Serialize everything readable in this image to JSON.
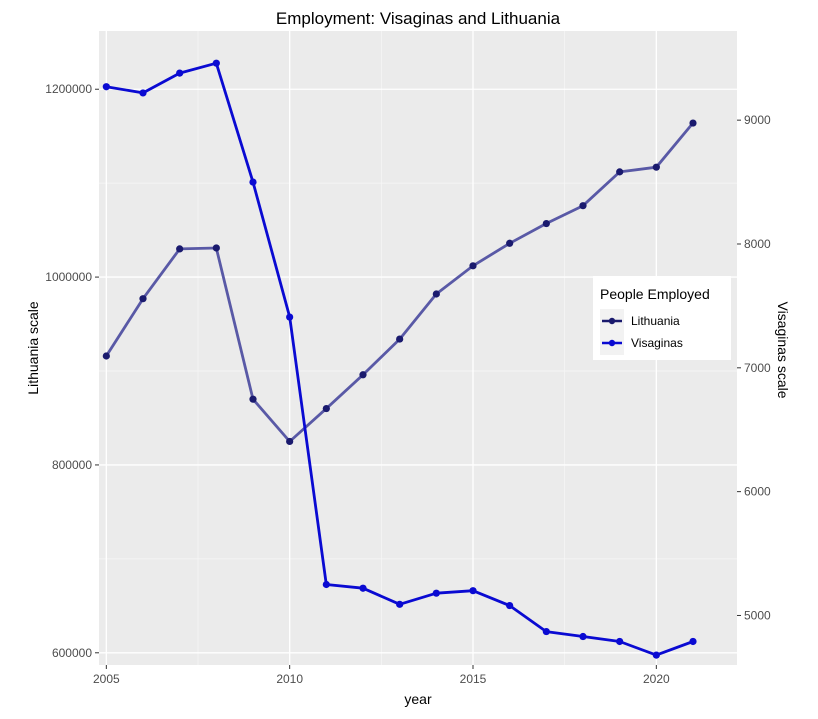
{
  "chart_data": {
    "type": "line",
    "title": "Employment: Visaginas and Lithuania",
    "xlabel": "year",
    "ylabel_left": "Lithuania scale",
    "ylabel_right": "Visaginas scale",
    "x": [
      2005,
      2006,
      2007,
      2008,
      2009,
      2010,
      2011,
      2012,
      2013,
      2014,
      2015,
      2016,
      2017,
      2018,
      2019,
      2020,
      2021
    ],
    "xlim": [
      2004.8,
      2022.2
    ],
    "ylim_left": [
      587000,
      1262000
    ],
    "ylim_right": [
      4600,
      9720
    ],
    "x_ticks": [
      2005,
      2010,
      2015,
      2020
    ],
    "y_ticks_left": [
      600000,
      800000,
      1000000,
      1200000
    ],
    "y_ticks_right": [
      5000,
      6000,
      7000,
      8000,
      9000
    ],
    "grid": true,
    "legend": {
      "title": "People Employed",
      "placement": "right"
    },
    "series": [
      {
        "name": "Lithuania",
        "axis": "left",
        "color": "#5959a6",
        "point_color": "#1a1a6e",
        "values": [
          916000,
          977000,
          1030000,
          1031000,
          870000,
          825000,
          860000,
          896000,
          934000,
          982000,
          1012000,
          1036000,
          1057000,
          1076000,
          1112000,
          1117000,
          1164000
        ]
      },
      {
        "name": "Visaginas",
        "axis": "right",
        "color": "#0a0ad2",
        "point_color": "#0a0ad2",
        "values": [
          9270,
          9220,
          9380,
          9460,
          8500,
          7410,
          5250,
          5220,
          5090,
          5180,
          5200,
          5080,
          4870,
          4830,
          4790,
          4680,
          4790
        ]
      }
    ]
  }
}
